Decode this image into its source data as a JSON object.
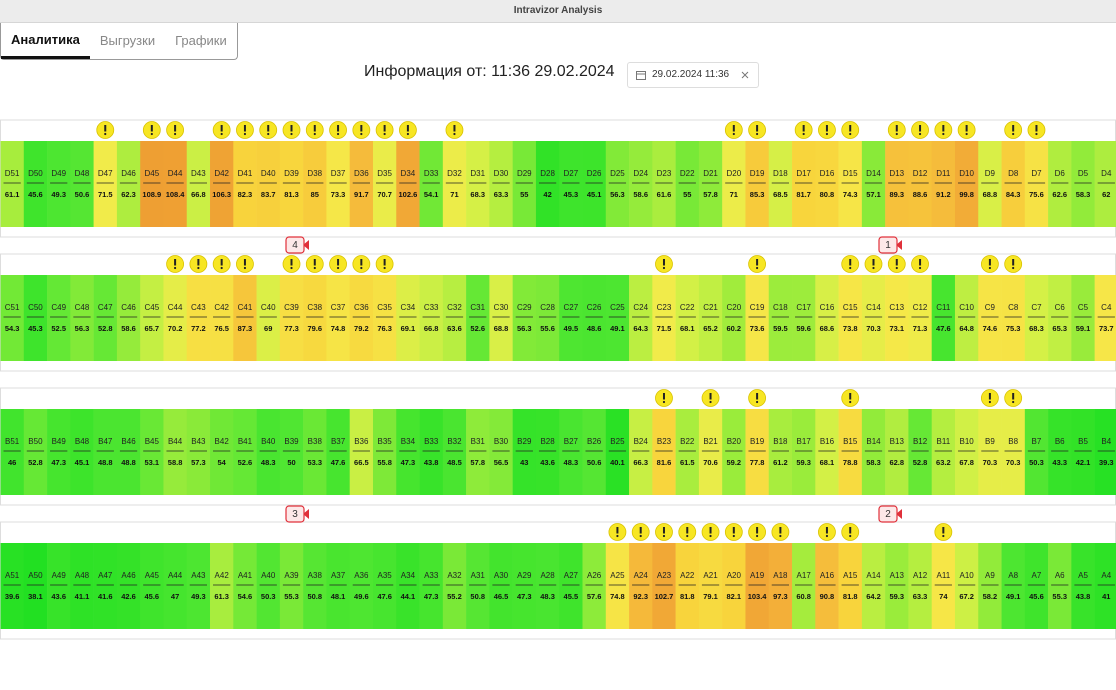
{
  "window_title": "Intravizor Analysis",
  "tabs": [
    "Аналитика",
    "Выгрузки",
    "Графики"
  ],
  "header": {
    "title": "Информация от: 11:36 29.02.2024",
    "date_picker": "29.02.2024 11:36"
  },
  "markers": [
    "4",
    "1",
    "3",
    "2"
  ],
  "rows": [
    {
      "cells": [
        {
          "label": "D51",
          "value": 61.1,
          "warn": false
        },
        {
          "label": "D50",
          "value": 45.6,
          "warn": false
        },
        {
          "label": "D49",
          "value": 49.3,
          "warn": false
        },
        {
          "label": "D48",
          "value": 50.6,
          "warn": false
        },
        {
          "label": "D47",
          "value": 71.5,
          "warn": true
        },
        {
          "label": "D46",
          "value": 62.3,
          "warn": false
        },
        {
          "label": "D45",
          "value": 108.9,
          "warn": true
        },
        {
          "label": "D44",
          "value": 108.4,
          "warn": true
        },
        {
          "label": "D43",
          "value": 66.8,
          "warn": false
        },
        {
          "label": "D42",
          "value": 106.3,
          "warn": true
        },
        {
          "label": "D41",
          "value": 82.3,
          "warn": true
        },
        {
          "label": "D40",
          "value": 83.7,
          "warn": true
        },
        {
          "label": "D39",
          "value": 81.3,
          "warn": true
        },
        {
          "label": "D38",
          "value": 85,
          "warn": true
        },
        {
          "label": "D37",
          "value": 73.3,
          "warn": true
        },
        {
          "label": "D36",
          "value": 91.7,
          "warn": true
        },
        {
          "label": "D35",
          "value": 70.7,
          "warn": true
        },
        {
          "label": "D34",
          "value": 102.6,
          "warn": true
        },
        {
          "label": "D33",
          "value": 54.1,
          "warn": false
        },
        {
          "label": "D32",
          "value": 71,
          "warn": true
        },
        {
          "label": "D31",
          "value": 68.3,
          "warn": false
        },
        {
          "label": "D30",
          "value": 63.3,
          "warn": false
        },
        {
          "label": "D29",
          "value": 55,
          "warn": false
        },
        {
          "label": "D28",
          "value": 42,
          "warn": false
        },
        {
          "label": "D27",
          "value": 45.3,
          "warn": false
        },
        {
          "label": "D26",
          "value": 45.1,
          "warn": false
        },
        {
          "label": "D25",
          "value": 56.3,
          "warn": false
        },
        {
          "label": "D24",
          "value": 58.6,
          "warn": false
        },
        {
          "label": "D23",
          "value": 61.6,
          "warn": false
        },
        {
          "label": "D22",
          "value": 55,
          "warn": false
        },
        {
          "label": "D21",
          "value": 57.8,
          "warn": false
        },
        {
          "label": "D20",
          "value": 71,
          "warn": true
        },
        {
          "label": "D19",
          "value": 85.3,
          "warn": true
        },
        {
          "label": "D18",
          "value": 68.5,
          "warn": false
        },
        {
          "label": "D17",
          "value": 81.7,
          "warn": true
        },
        {
          "label": "D16",
          "value": 80.8,
          "warn": true
        },
        {
          "label": "D15",
          "value": 74.3,
          "warn": true
        },
        {
          "label": "D14",
          "value": 57.1,
          "warn": false
        },
        {
          "label": "D13",
          "value": 89.3,
          "warn": true
        },
        {
          "label": "D12",
          "value": 88.6,
          "warn": true
        },
        {
          "label": "D11",
          "value": 91.2,
          "warn": true
        },
        {
          "label": "D10",
          "value": 99.8,
          "warn": true
        },
        {
          "label": "D9",
          "value": 68.8,
          "warn": false
        },
        {
          "label": "D8",
          "value": 84.3,
          "warn": true
        },
        {
          "label": "D7",
          "value": 75.6,
          "warn": true
        },
        {
          "label": "D6",
          "value": 62.6,
          "warn": false
        },
        {
          "label": "D5",
          "value": 58.3,
          "warn": false
        },
        {
          "label": "D4",
          "value": 62,
          "warn": false
        }
      ]
    },
    {
      "cells": [
        {
          "label": "C51",
          "value": 54.3,
          "warn": false
        },
        {
          "label": "C50",
          "value": 45.3,
          "warn": false
        },
        {
          "label": "C49",
          "value": 52.5,
          "warn": false
        },
        {
          "label": "C48",
          "value": 56.3,
          "warn": false
        },
        {
          "label": "C47",
          "value": 52.8,
          "warn": false
        },
        {
          "label": "C46",
          "value": 58.6,
          "warn": false
        },
        {
          "label": "C45",
          "value": 65.7,
          "warn": false
        },
        {
          "label": "C44",
          "value": 70.2,
          "warn": true
        },
        {
          "label": "C43",
          "value": 77.2,
          "warn": true
        },
        {
          "label": "C42",
          "value": 76.5,
          "warn": true
        },
        {
          "label": "C41",
          "value": 87.3,
          "warn": true
        },
        {
          "label": "C40",
          "value": 69,
          "warn": false
        },
        {
          "label": "C39",
          "value": 77.3,
          "warn": true
        },
        {
          "label": "C38",
          "value": 79.6,
          "warn": true
        },
        {
          "label": "C37",
          "value": 74.8,
          "warn": true
        },
        {
          "label": "C36",
          "value": 79.2,
          "warn": true
        },
        {
          "label": "C35",
          "value": 76.3,
          "warn": true
        },
        {
          "label": "C34",
          "value": 69.1,
          "warn": false
        },
        {
          "label": "C33",
          "value": 66.8,
          "warn": false
        },
        {
          "label": "C32",
          "value": 63.6,
          "warn": false
        },
        {
          "label": "C31",
          "value": 52.6,
          "warn": false
        },
        {
          "label": "C30",
          "value": 68.8,
          "warn": false
        },
        {
          "label": "C29",
          "value": 56.3,
          "warn": false
        },
        {
          "label": "C28",
          "value": 55.6,
          "warn": false
        },
        {
          "label": "C27",
          "value": 49.5,
          "warn": false
        },
        {
          "label": "C26",
          "value": 48.6,
          "warn": false
        },
        {
          "label": "C25",
          "value": 49.1,
          "warn": false
        },
        {
          "label": "C24",
          "value": 64.3,
          "warn": false
        },
        {
          "label": "C23",
          "value": 71.5,
          "warn": true
        },
        {
          "label": "C22",
          "value": 68.1,
          "warn": false
        },
        {
          "label": "C21",
          "value": 65.2,
          "warn": false
        },
        {
          "label": "C20",
          "value": 60.2,
          "warn": false
        },
        {
          "label": "C19",
          "value": 73.6,
          "warn": true
        },
        {
          "label": "C18",
          "value": 59.5,
          "warn": false
        },
        {
          "label": "C17",
          "value": 59.6,
          "warn": false
        },
        {
          "label": "C16",
          "value": 68.6,
          "warn": false
        },
        {
          "label": "C15",
          "value": 73.8,
          "warn": true
        },
        {
          "label": "C14",
          "value": 70.3,
          "warn": true
        },
        {
          "label": "C13",
          "value": 73.1,
          "warn": true
        },
        {
          "label": "C12",
          "value": 71.3,
          "warn": true
        },
        {
          "label": "C11",
          "value": 47.6,
          "warn": false
        },
        {
          "label": "C10",
          "value": 64.8,
          "warn": false
        },
        {
          "label": "C9",
          "value": 74.6,
          "warn": true
        },
        {
          "label": "C8",
          "value": 75.3,
          "warn": true
        },
        {
          "label": "C7",
          "value": 68.3,
          "warn": false
        },
        {
          "label": "C6",
          "value": 65.3,
          "warn": false
        },
        {
          "label": "C5",
          "value": 59.1,
          "warn": false
        },
        {
          "label": "C4",
          "value": 73.7,
          "warn": false
        }
      ]
    },
    {
      "cells": [
        {
          "label": "B51",
          "value": 46,
          "warn": false
        },
        {
          "label": "B50",
          "value": 52.8,
          "warn": false
        },
        {
          "label": "B49",
          "value": 47.3,
          "warn": false
        },
        {
          "label": "B48",
          "value": 45.1,
          "warn": false
        },
        {
          "label": "B47",
          "value": 48.8,
          "warn": false
        },
        {
          "label": "B46",
          "value": 48.8,
          "warn": false
        },
        {
          "label": "B45",
          "value": 53.1,
          "warn": false
        },
        {
          "label": "B44",
          "value": 58.8,
          "warn": false
        },
        {
          "label": "B43",
          "value": 57.3,
          "warn": false
        },
        {
          "label": "B42",
          "value": 54,
          "warn": false
        },
        {
          "label": "B41",
          "value": 52.6,
          "warn": false
        },
        {
          "label": "B40",
          "value": 48.3,
          "warn": false
        },
        {
          "label": "B39",
          "value": 50,
          "warn": false
        },
        {
          "label": "B38",
          "value": 53.3,
          "warn": false
        },
        {
          "label": "B37",
          "value": 47.6,
          "warn": false
        },
        {
          "label": "B36",
          "value": 66.5,
          "warn": false
        },
        {
          "label": "B35",
          "value": 55.8,
          "warn": false
        },
        {
          "label": "B34",
          "value": 47.3,
          "warn": false
        },
        {
          "label": "B33",
          "value": 43.8,
          "warn": false
        },
        {
          "label": "B32",
          "value": 48.5,
          "warn": false
        },
        {
          "label": "B31",
          "value": 57.8,
          "warn": false
        },
        {
          "label": "B30",
          "value": 56.5,
          "warn": false
        },
        {
          "label": "B29",
          "value": 43,
          "warn": false
        },
        {
          "label": "B28",
          "value": 43.6,
          "warn": false
        },
        {
          "label": "B27",
          "value": 48.3,
          "warn": false
        },
        {
          "label": "B26",
          "value": 50.6,
          "warn": false
        },
        {
          "label": "B25",
          "value": 40.1,
          "warn": false
        },
        {
          "label": "B24",
          "value": 66.3,
          "warn": false
        },
        {
          "label": "B23",
          "value": 81.6,
          "warn": true
        },
        {
          "label": "B22",
          "value": 61.5,
          "warn": false
        },
        {
          "label": "B21",
          "value": 70.6,
          "warn": true
        },
        {
          "label": "B20",
          "value": 59.2,
          "warn": false
        },
        {
          "label": "B19",
          "value": 77.8,
          "warn": true
        },
        {
          "label": "B18",
          "value": 61.2,
          "warn": false
        },
        {
          "label": "B17",
          "value": 59.3,
          "warn": false
        },
        {
          "label": "B16",
          "value": 68.1,
          "warn": false
        },
        {
          "label": "B15",
          "value": 78.8,
          "warn": true
        },
        {
          "label": "B14",
          "value": 58.3,
          "warn": false
        },
        {
          "label": "B13",
          "value": 62.8,
          "warn": false
        },
        {
          "label": "B12",
          "value": 52.8,
          "warn": false
        },
        {
          "label": "B11",
          "value": 63.2,
          "warn": false
        },
        {
          "label": "B10",
          "value": 67.8,
          "warn": false
        },
        {
          "label": "B9",
          "value": 70.3,
          "warn": true
        },
        {
          "label": "B8",
          "value": 70.3,
          "warn": true
        },
        {
          "label": "B7",
          "value": 50.3,
          "warn": false
        },
        {
          "label": "B6",
          "value": 43.3,
          "warn": false
        },
        {
          "label": "B5",
          "value": 42.1,
          "warn": false
        },
        {
          "label": "B4",
          "value": 39.3,
          "warn": false
        }
      ]
    },
    {
      "cells": [
        {
          "label": "A51",
          "value": 39.6,
          "warn": false
        },
        {
          "label": "A50",
          "value": 38.1,
          "warn": false
        },
        {
          "label": "A49",
          "value": 43.6,
          "warn": false
        },
        {
          "label": "A48",
          "value": 41.1,
          "warn": false
        },
        {
          "label": "A47",
          "value": 41.6,
          "warn": false
        },
        {
          "label": "A46",
          "value": 42.6,
          "warn": false
        },
        {
          "label": "A45",
          "value": 45.6,
          "warn": false
        },
        {
          "label": "A44",
          "value": 47,
          "warn": false
        },
        {
          "label": "A43",
          "value": 49.3,
          "warn": false
        },
        {
          "label": "A42",
          "value": 61.3,
          "warn": false
        },
        {
          "label": "A41",
          "value": 54.6,
          "warn": false
        },
        {
          "label": "A40",
          "value": 50.3,
          "warn": false
        },
        {
          "label": "A39",
          "value": 55.3,
          "warn": false
        },
        {
          "label": "A38",
          "value": 50.8,
          "warn": false
        },
        {
          "label": "A37",
          "value": 48.1,
          "warn": false
        },
        {
          "label": "A36",
          "value": 49.6,
          "warn": false
        },
        {
          "label": "A35",
          "value": 47.6,
          "warn": false
        },
        {
          "label": "A34",
          "value": 44.1,
          "warn": false
        },
        {
          "label": "A33",
          "value": 47.3,
          "warn": false
        },
        {
          "label": "A32",
          "value": 55.2,
          "warn": false
        },
        {
          "label": "A31",
          "value": 50.8,
          "warn": false
        },
        {
          "label": "A30",
          "value": 46.5,
          "warn": false
        },
        {
          "label": "A29",
          "value": 47.3,
          "warn": false
        },
        {
          "label": "A28",
          "value": 48.3,
          "warn": false
        },
        {
          "label": "A27",
          "value": 45.5,
          "warn": false
        },
        {
          "label": "A26",
          "value": 57.6,
          "warn": false
        },
        {
          "label": "A25",
          "value": 74.8,
          "warn": true
        },
        {
          "label": "A24",
          "value": 92.3,
          "warn": true
        },
        {
          "label": "A23",
          "value": 102.7,
          "warn": true
        },
        {
          "label": "A22",
          "value": 81.8,
          "warn": true
        },
        {
          "label": "A21",
          "value": 79.1,
          "warn": true
        },
        {
          "label": "A20",
          "value": 82.1,
          "warn": true
        },
        {
          "label": "A19",
          "value": 103.4,
          "warn": true
        },
        {
          "label": "A18",
          "value": 97.3,
          "warn": true
        },
        {
          "label": "A17",
          "value": 60.8,
          "warn": false
        },
        {
          "label": "A16",
          "value": 90.8,
          "warn": true
        },
        {
          "label": "A15",
          "value": 81.8,
          "warn": true
        },
        {
          "label": "A14",
          "value": 64.2,
          "warn": false
        },
        {
          "label": "A13",
          "value": 59.3,
          "warn": false
        },
        {
          "label": "A12",
          "value": 63.3,
          "warn": false
        },
        {
          "label": "A11",
          "value": 74,
          "warn": true
        },
        {
          "label": "A10",
          "value": 67.2,
          "warn": false
        },
        {
          "label": "A9",
          "value": 58.2,
          "warn": false
        },
        {
          "label": "A8",
          "value": 49.1,
          "warn": false
        },
        {
          "label": "A7",
          "value": 45.6,
          "warn": false
        },
        {
          "label": "A6",
          "value": 55.3,
          "warn": false
        },
        {
          "label": "A5",
          "value": 43.8,
          "warn": false
        },
        {
          "label": "A4",
          "value": 41,
          "warn": false
        }
      ]
    }
  ]
}
